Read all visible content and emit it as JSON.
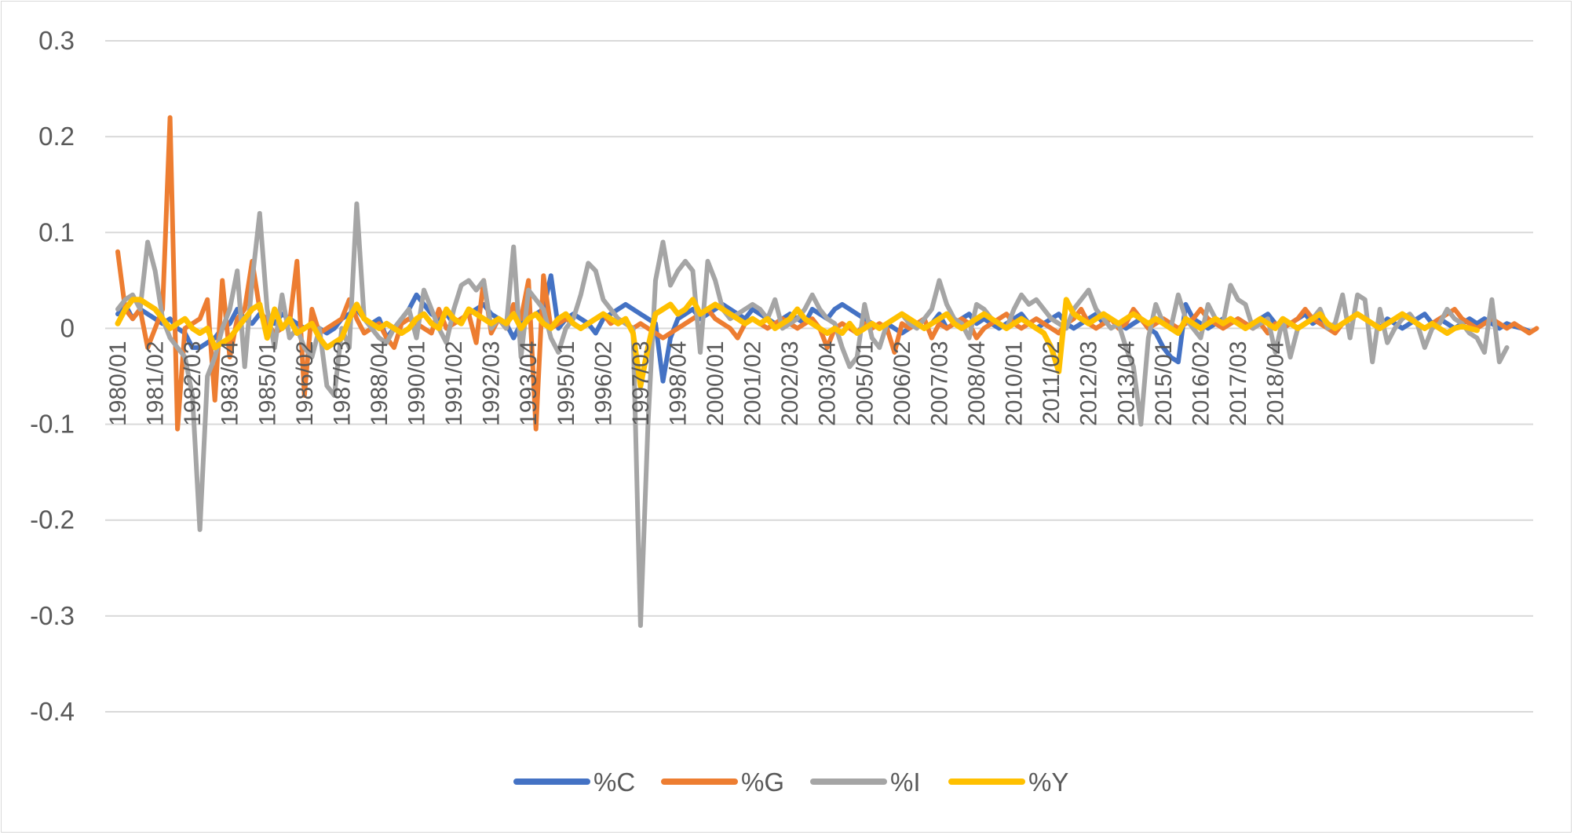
{
  "chart_data": {
    "type": "line",
    "title": "",
    "xlabel": "",
    "ylabel": "",
    "ylim": [
      -0.4,
      0.3
    ],
    "yticks": [
      0.3,
      0.2,
      0.1,
      0,
      -0.1,
      -0.2,
      -0.3,
      -0.4
    ],
    "ytick_labels": [
      "0.3",
      "0.2",
      "0.1",
      "0",
      "-0.1",
      "-0.2",
      "-0.3",
      "-0.4"
    ],
    "grid": true,
    "legend_position": "bottom",
    "x_start": "1980/01",
    "x_tick_labels": [
      "1980/01",
      "1981/02",
      "1982/03",
      "1983/04",
      "1985/01",
      "1986/02",
      "1987/03",
      "1988/04",
      "1990/01",
      "1991/02",
      "1992/03",
      "1993/04",
      "1995/01",
      "1996/02",
      "1997/03",
      "1998/04",
      "2000/01",
      "2001/02",
      "2002/03",
      "2003/04",
      "2005/01",
      "2006/02",
      "2007/03",
      "2008/04",
      "2010/01",
      "2011/02",
      "2012/03",
      "2013/04",
      "2015/01",
      "2016/02",
      "2017/03",
      "2018/04"
    ],
    "series": [
      {
        "name": "%C",
        "color": "#4472c4",
        "values": [
          0.015,
          0.025,
          0.01,
          0.02,
          0.015,
          0.01,
          0.005,
          0.01,
          0.0,
          -0.005,
          -0.02,
          -0.02,
          -0.015,
          -0.01,
          0.0,
          0.005,
          0.02,
          0.01,
          0.005,
          0.015,
          0.01,
          0.005,
          0.015,
          0.01,
          0.005,
          0.0,
          0.005,
          0.0,
          -0.005,
          0.0,
          0.01,
          0.015,
          0.02,
          0.01,
          0.005,
          0.01,
          -0.01,
          0.0,
          0.01,
          0.02,
          0.035,
          0.025,
          0.015,
          0.01,
          0.015,
          0.005,
          0.01,
          0.015,
          0.02,
          0.025,
          0.015,
          0.01,
          0.005,
          -0.01,
          0.005,
          0.01,
          0.015,
          0.02,
          0.055,
          0.0,
          0.01,
          0.015,
          0.01,
          0.005,
          -0.005,
          0.01,
          0.015,
          0.02,
          0.025,
          0.02,
          0.015,
          0.01,
          0.005,
          -0.055,
          -0.01,
          0.01,
          0.015,
          0.02,
          0.01,
          0.015,
          0.02,
          0.025,
          0.02,
          0.015,
          0.01,
          0.02,
          0.015,
          0.01,
          0.005,
          0.01,
          0.015,
          0.01,
          0.005,
          0.02,
          0.015,
          0.01,
          0.02,
          0.025,
          0.02,
          0.015,
          0.01,
          0.005,
          0.0,
          0.005,
          0.0,
          -0.005,
          0.0,
          0.005,
          0.0,
          0.005,
          0.015,
          0.0,
          0.005,
          0.01,
          0.015,
          0.005,
          0.01,
          0.005,
          0.0,
          0.005,
          0.01,
          0.015,
          0.005,
          0.0,
          0.005,
          0.01,
          0.015,
          0.005,
          0.0,
          0.005,
          0.01,
          0.015,
          0.005,
          0.01,
          0.005,
          0.0,
          0.005,
          0.01,
          0.0,
          -0.005,
          -0.02,
          -0.03,
          -0.035,
          0.025,
          0.01,
          0.005,
          0.0,
          0.005,
          0.01,
          0.005,
          0.01,
          0.005,
          0.0,
          0.01,
          0.015,
          0.005,
          0.0,
          0.005,
          0.01,
          0.015,
          0.005,
          0.01,
          0.005,
          0.0,
          0.005,
          0.01,
          0.015,
          0.01,
          0.005,
          0.0,
          0.01,
          0.005,
          0.0,
          0.005,
          0.01,
          0.015,
          0.005,
          0.01,
          0.005,
          0.0,
          0.005,
          0.01,
          0.005,
          0.01,
          0.005,
          0.0,
          0.005,
          0.002,
          0.0,
          -0.003
        ]
      },
      {
        "name": "%G",
        "color": "#ed7d31",
        "values": [
          0.08,
          0.02,
          0.01,
          0.02,
          -0.02,
          0.0,
          0.02,
          0.22,
          -0.105,
          0.0,
          0.005,
          0.01,
          0.03,
          -0.075,
          0.05,
          -0.03,
          0.01,
          0.02,
          0.07,
          0.02,
          0.005,
          -0.005,
          0.0,
          0.005,
          0.07,
          -0.07,
          0.02,
          -0.005,
          0.0,
          0.005,
          0.01,
          0.03,
          0.01,
          -0.005,
          0.0,
          0.005,
          -0.01,
          -0.02,
          0.005,
          0.01,
          0.005,
          0.0,
          -0.005,
          0.02,
          0.0,
          0.005,
          0.01,
          0.015,
          -0.015,
          0.05,
          -0.005,
          0.01,
          0.0,
          0.025,
          0.01,
          0.05,
          -0.105,
          0.055,
          0.0,
          0.005,
          0.01,
          0.005,
          0.0,
          0.005,
          0.01,
          0.015,
          0.005,
          0.01,
          0.005,
          0.0,
          0.005,
          0.0,
          -0.005,
          -0.01,
          -0.005,
          0.0,
          0.005,
          0.01,
          0.015,
          0.02,
          0.01,
          0.005,
          0.0,
          -0.01,
          0.005,
          0.01,
          0.005,
          0.0,
          0.005,
          0.01,
          0.005,
          0.0,
          0.005,
          0.01,
          0.0,
          -0.02,
          0.0,
          0.005,
          0.0,
          -0.005,
          0.005,
          0.0,
          0.005,
          0.0,
          -0.025,
          0.005,
          0.0,
          0.005,
          0.01,
          -0.01,
          0.005,
          0.0,
          0.005,
          0.01,
          0.005,
          -0.01,
          0.0,
          0.005,
          0.01,
          0.015,
          0.005,
          0.0,
          0.005,
          0.01,
          0.005,
          0.0,
          -0.005,
          0.005,
          0.01,
          0.02,
          0.005,
          0.0,
          0.005,
          0.01,
          0.0,
          0.005,
          0.02,
          0.01,
          0.0,
          0.005,
          0.01,
          0.005,
          0.0,
          0.005,
          0.01,
          0.02,
          0.01,
          0.005,
          0.0,
          0.005,
          0.01,
          0.005,
          0.0,
          0.005,
          -0.005,
          0.005,
          0.0,
          0.005,
          0.01,
          0.02,
          0.01,
          0.005,
          0.0,
          -0.005,
          0.005,
          0.01,
          0.015,
          0.01,
          0.005,
          0.0,
          0.005,
          0.01,
          0.015,
          0.01,
          0.005,
          0.0,
          0.005,
          0.01,
          0.015,
          0.02,
          0.01,
          0.005,
          0.0,
          0.005,
          0.01,
          0.005,
          0.0,
          0.005,
          0.0,
          -0.005,
          0.0
        ]
      },
      {
        "name": "%I",
        "color": "#a5a5a5",
        "values": [
          0.02,
          0.03,
          0.035,
          0.02,
          0.09,
          0.06,
          0.01,
          -0.01,
          -0.02,
          -0.03,
          -0.07,
          -0.21,
          -0.05,
          -0.03,
          0.0,
          0.02,
          0.06,
          -0.04,
          0.05,
          0.12,
          0.02,
          -0.02,
          0.035,
          -0.01,
          0.0,
          -0.02,
          -0.03,
          0.0,
          -0.06,
          -0.07,
          0.0,
          -0.02,
          0.13,
          0.01,
          0.0,
          -0.01,
          -0.015,
          0.0,
          0.01,
          0.02,
          -0.01,
          0.04,
          0.02,
          0.0,
          -0.015,
          0.02,
          0.045,
          0.05,
          0.04,
          0.05,
          0.0,
          0.01,
          0.0,
          0.085,
          -0.03,
          0.04,
          0.03,
          0.02,
          -0.01,
          -0.025,
          0.0,
          0.01,
          0.035,
          0.068,
          0.06,
          0.03,
          0.02,
          0.01,
          0.005,
          0.0,
          -0.31,
          -0.1,
          0.05,
          0.09,
          0.045,
          0.06,
          0.07,
          0.06,
          -0.025,
          0.07,
          0.05,
          0.02,
          0.01,
          0.015,
          0.02,
          0.025,
          0.02,
          0.01,
          0.03,
          0.0,
          0.005,
          0.01,
          0.02,
          0.035,
          0.02,
          0.01,
          0.005,
          -0.02,
          -0.04,
          -0.03,
          0.025,
          -0.01,
          -0.02,
          0.005,
          0.01,
          0.015,
          0.005,
          0.0,
          0.01,
          0.02,
          0.05,
          0.025,
          0.01,
          0.005,
          -0.01,
          0.025,
          0.02,
          0.01,
          0.005,
          0.0,
          0.02,
          0.035,
          0.025,
          0.03,
          0.02,
          0.01,
          0.005,
          0.0,
          0.02,
          0.03,
          0.04,
          0.02,
          0.01,
          0.0,
          0.005,
          -0.02,
          -0.04,
          -0.1,
          -0.01,
          0.025,
          0.005,
          0.0,
          0.035,
          0.01,
          0.0,
          -0.01,
          0.025,
          0.01,
          0.005,
          0.045,
          0.03,
          0.025,
          0.0,
          0.005,
          0.01,
          -0.025,
          0.01,
          -0.03,
          0.0,
          0.005,
          0.01,
          0.02,
          0.0,
          0.005,
          0.035,
          -0.01,
          0.035,
          0.03,
          -0.035,
          0.02,
          -0.015,
          0.0,
          0.01,
          0.015,
          0.005,
          -0.02,
          0.0,
          0.005,
          0.02,
          0.01,
          0.005,
          -0.005,
          -0.01,
          -0.025,
          0.03,
          -0.035,
          -0.02
        ]
      },
      {
        "name": "%Y",
        "color": "#ffc000",
        "values": [
          0.005,
          0.02,
          0.03,
          0.03,
          0.025,
          0.02,
          0.01,
          0.0,
          0.005,
          0.01,
          0.0,
          -0.005,
          0.0,
          -0.02,
          -0.015,
          -0.01,
          0.0,
          0.01,
          0.02,
          0.025,
          -0.01,
          0.02,
          0.0,
          0.01,
          -0.005,
          0.0,
          0.005,
          -0.01,
          -0.02,
          -0.015,
          -0.01,
          0.01,
          0.025,
          0.01,
          0.005,
          0.0,
          0.005,
          0.0,
          -0.005,
          0.0,
          0.01,
          0.015,
          0.005,
          0.0,
          0.02,
          0.01,
          0.005,
          0.02,
          0.015,
          0.01,
          0.005,
          0.01,
          0.005,
          0.015,
          0.0,
          0.01,
          0.015,
          0.005,
          0.0,
          0.01,
          0.015,
          0.005,
          0.0,
          0.005,
          0.01,
          0.015,
          0.01,
          0.005,
          0.01,
          -0.005,
          -0.06,
          -0.02,
          0.015,
          0.02,
          0.025,
          0.015,
          0.02,
          0.03,
          0.015,
          0.02,
          0.025,
          0.02,
          0.015,
          0.01,
          0.005,
          0.01,
          0.005,
          0.01,
          0.0,
          0.005,
          0.01,
          0.02,
          0.01,
          0.005,
          0.0,
          -0.005,
          0.0,
          -0.005,
          0.005,
          -0.005,
          0.0,
          0.005,
          0.0,
          0.005,
          0.01,
          0.015,
          0.01,
          0.005,
          0.0,
          0.005,
          0.01,
          0.015,
          0.005,
          0.0,
          0.005,
          0.01,
          0.015,
          0.01,
          0.005,
          0.0,
          0.005,
          0.01,
          0.005,
          0.0,
          -0.005,
          -0.02,
          -0.045,
          0.03,
          0.015,
          0.01,
          0.005,
          0.01,
          0.015,
          0.01,
          0.005,
          0.01,
          0.015,
          0.01,
          0.005,
          0.01,
          0.005,
          0.0,
          -0.005,
          0.01,
          0.005,
          0.0,
          0.005,
          0.01,
          0.005,
          0.01,
          0.005,
          0.0,
          0.005,
          0.01,
          0.005,
          0.0,
          0.01,
          0.005,
          0.0,
          0.005,
          0.01,
          0.015,
          0.005,
          0.0,
          0.005,
          0.01,
          0.015,
          0.01,
          0.005,
          0.0,
          0.005,
          0.01,
          0.015,
          0.01,
          0.005,
          0.0,
          0.005,
          0.0,
          -0.005,
          0.0,
          0.002,
          0.0,
          -0.002
        ]
      }
    ]
  }
}
